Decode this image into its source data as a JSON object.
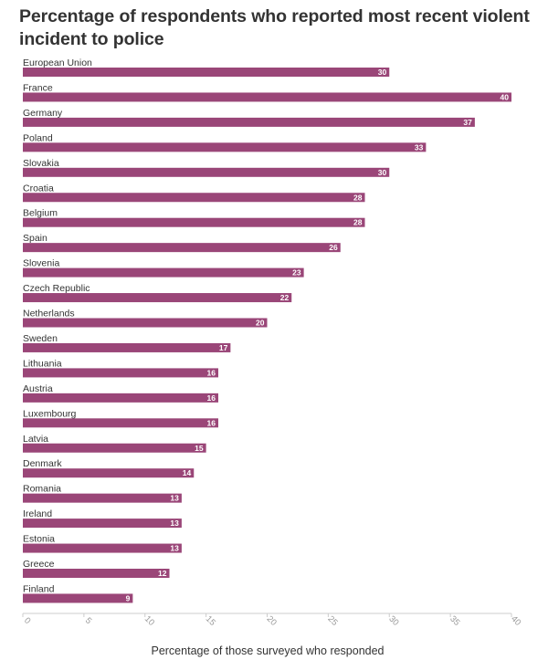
{
  "title": "Percentage of respondents who reported most recent violent incident to police",
  "chart_data": {
    "type": "bar",
    "orientation": "horizontal",
    "title": "Percentage of respondents who reported most recent violent incident to police",
    "xlabel": "Percentage of those surveyed who responded",
    "ylabel": "",
    "xlim": [
      0,
      40
    ],
    "xticks": [
      0,
      5,
      10,
      15,
      20,
      25,
      30,
      35,
      40
    ],
    "grid": false,
    "bar_color": "#9a4678",
    "categories": [
      "European Union",
      "France",
      "Germany",
      "Poland",
      "Slovakia",
      "Croatia",
      "Belgium",
      "Spain",
      "Slovenia",
      "Czech Republic",
      "Netherlands",
      "Sweden",
      "Lithuania",
      "Austria",
      "Luxembourg",
      "Latvia",
      "Denmark",
      "Romania",
      "Ireland",
      "Estonia",
      "Greece",
      "Finland"
    ],
    "values": [
      30,
      40,
      37,
      33,
      30,
      28,
      28,
      26,
      23,
      22,
      20,
      17,
      16,
      16,
      16,
      15,
      14,
      13,
      13,
      13,
      12,
      9
    ]
  }
}
